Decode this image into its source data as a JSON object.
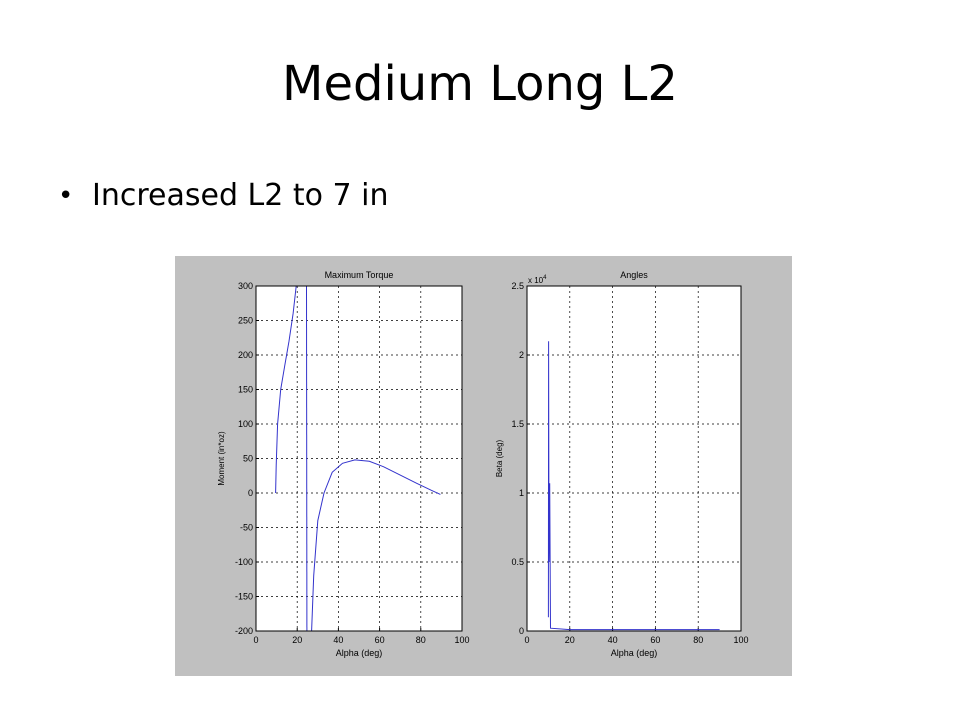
{
  "slide": {
    "title": "Medium Long L2",
    "bullets": [
      "Increased L2 to 7 in"
    ]
  },
  "chart_data": [
    {
      "type": "line",
      "title": "Maximum Torque",
      "xlabel": "Alpha (deg)",
      "ylabel": "Moment (in*oz)",
      "xlim": [
        0,
        100
      ],
      "ylim": [
        -200,
        300
      ],
      "xticks": [
        0,
        20,
        40,
        60,
        80,
        100
      ],
      "yticks": [
        -200,
        -150,
        -100,
        -50,
        0,
        50,
        100,
        150,
        200,
        250,
        300
      ],
      "grid": true,
      "line_color": "#3333cc",
      "series": [
        {
          "values": [
            [
              9.5,
              0
            ],
            [
              9.8,
              40
            ],
            [
              10.5,
              100
            ],
            [
              12,
              150
            ],
            [
              14,
              185
            ],
            [
              16,
              220
            ],
            [
              18,
              260
            ],
            [
              19.5,
              300
            ]
          ]
        },
        {
          "values": [
            [
              24.5,
              300
            ],
            [
              24.7,
              -200
            ]
          ]
        },
        {
          "values": [
            [
              27,
              -200
            ],
            [
              28,
              -120
            ],
            [
              30,
              -40
            ],
            [
              33,
              0
            ],
            [
              37,
              30
            ],
            [
              42,
              43
            ],
            [
              48,
              48
            ],
            [
              55,
              46
            ],
            [
              62,
              38
            ],
            [
              70,
              26
            ],
            [
              78,
              14
            ],
            [
              85,
              4
            ],
            [
              89.5,
              -2
            ]
          ]
        }
      ]
    },
    {
      "type": "line",
      "title": "Angles",
      "xlabel": "Alpha (deg)",
      "ylabel": "Beta (deg)",
      "y_exponent": "x 10^4",
      "y_multiplier_base": "x 10",
      "y_multiplier_exp": "4",
      "xlim": [
        0,
        100
      ],
      "ylim": [
        0,
        2.5
      ],
      "xticks": [
        0,
        20,
        40,
        60,
        80,
        100
      ],
      "yticks": [
        0,
        0.5,
        1,
        1.5,
        2,
        2.5
      ],
      "grid": true,
      "line_color": "#3333cc",
      "series": [
        {
          "values": [
            [
              10,
              0.1
            ],
            [
              10.1,
              2.1
            ],
            [
              10.3,
              0.5
            ],
            [
              10.6,
              1.07
            ],
            [
              11,
              0.02
            ],
            [
              20,
              0.01
            ],
            [
              40,
              0.01
            ],
            [
              60,
              0.01
            ],
            [
              80,
              0.01
            ],
            [
              90,
              0.01
            ]
          ]
        }
      ]
    }
  ]
}
